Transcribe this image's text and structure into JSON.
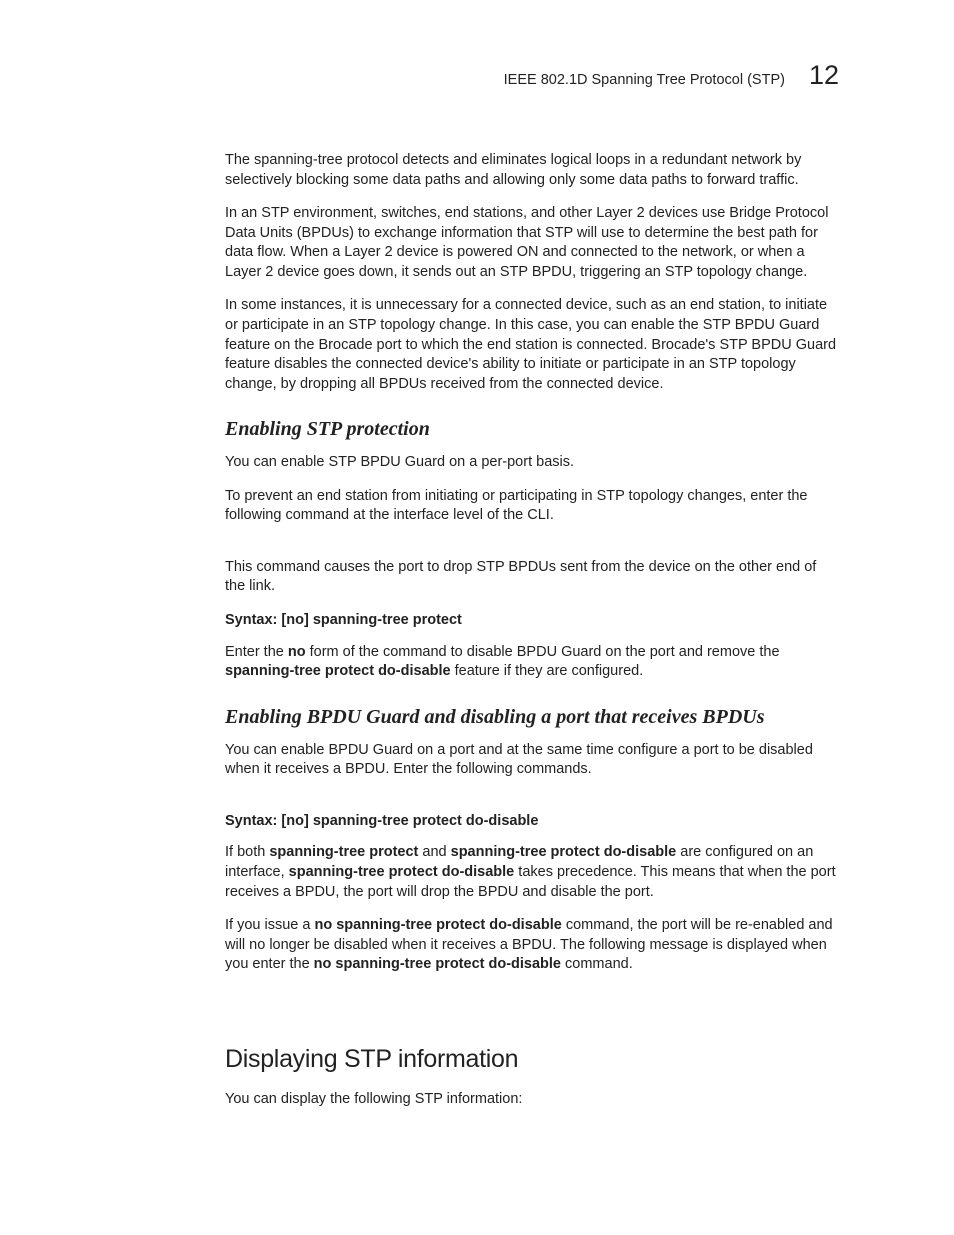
{
  "header": {
    "title": "IEEE 802.1D Spanning Tree Protocol (STP)",
    "chapter_number": "12"
  },
  "para1": "The spanning-tree protocol detects and eliminates logical loops in a redundant network by selectively blocking some data paths and allowing only some data paths to forward traffic.",
  "para2": "In an STP environment, switches, end stations, and other Layer 2 devices use Bridge Protocol Data Units (BPDUs) to exchange information that STP will use to determine the best path for data flow. When a Layer 2 device is powered ON and connected to the network, or when a Layer 2 device goes down, it sends out an STP BPDU, triggering an STP topology change.",
  "para3": "In some instances, it is unnecessary for a connected device, such as an end station, to initiate or participate in an STP topology change. In this case, you can enable the STP BPDU Guard feature on the Brocade port to which the end station is connected. Brocade's STP BPDU Guard feature disables the connected device's ability to initiate or participate in an STP topology change, by dropping all BPDUs received from the connected device.",
  "sec1": {
    "title": "Enabling STP protection",
    "p1": "You can enable STP BPDU Guard on a per-port basis.",
    "p2": "To prevent an end station from initiating or participating in STP topology changes, enter the following command at the interface level of the CLI.",
    "p3": "This command causes the port to drop STP BPDUs sent from the device on the other end of the link.",
    "syntax_label": "Syntax:  ",
    "syntax_cmd": "[no] spanning-tree protect",
    "p4_a": "Enter the ",
    "p4_b": "no",
    "p4_c": " form of the command to disable BPDU Guard on the port and remove the ",
    "p4_d": "spanning-tree protect do-disable",
    "p4_e": " feature if they are configured."
  },
  "sec2": {
    "title": "Enabling BPDU Guard and disabling a port that receives BPDUs",
    "p1": "You can enable BPDU Guard on a port and at the same time configure a port to be disabled when it receives a BPDU. Enter the following commands.",
    "syntax_label": "Syntax:  ",
    "syntax_cmd": "[no] spanning-tree protect do-disable",
    "p2_a": "If both ",
    "p2_b": "spanning-tree protect",
    "p2_c": " and ",
    "p2_d": "spanning-tree protect do-disable",
    "p2_e": " are configured on an interface, ",
    "p2_f": "spanning-tree protect do-disable",
    "p2_g": " takes precedence. This means that when the port receives a BPDU, the port will drop the BPDU and disable the port.",
    "p3_a": "If you issue a ",
    "p3_b": "no spanning-tree protect do-disable",
    "p3_c": " command, the port will be re-enabled and will no longer be disabled when it receives a BPDU. The following message is displayed when you enter the ",
    "p3_d": "no spanning-tree protect do-disable",
    "p3_e": " command."
  },
  "sec3": {
    "title": "Displaying STP information",
    "p1": "You can display the following STP information:"
  }
}
